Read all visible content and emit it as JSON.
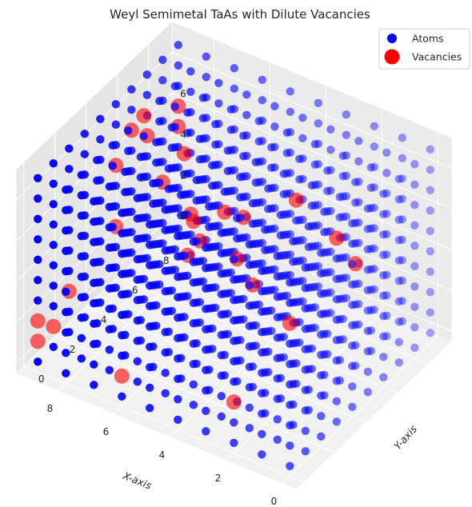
{
  "chart_data": {
    "type": "scatter",
    "projection": "3d",
    "title": "Weyl Semimetal TaAs with Dilute Vacancies",
    "xlabel": "X-axis",
    "ylabel": "Y-axis",
    "zlabel": "",
    "xlim": [
      0,
      9
    ],
    "ylim": [
      0,
      9
    ],
    "zlim": [
      0,
      9
    ],
    "xticks": [
      "0",
      "2",
      "4",
      "6",
      "8"
    ],
    "yticks": [
      "0",
      "2",
      "4",
      "6",
      "8"
    ],
    "zticks": [
      "0",
      "2",
      "4",
      "6"
    ],
    "grid": true,
    "legend_position": "top-right",
    "lattice": {
      "n": 10,
      "spacing": 1
    },
    "series": [
      {
        "name": "Atoms",
        "color": "#0000ff",
        "marker": "circle"
      },
      {
        "name": "Vacancies",
        "color": "#ff0000",
        "marker": "circle",
        "alpha": 0.6,
        "points": [
          [
            9,
            0,
            2
          ],
          [
            9,
            1,
            1
          ],
          [
            9,
            0,
            1
          ],
          [
            9,
            2,
            2
          ],
          [
            9,
            5,
            3
          ],
          [
            9,
            7,
            6
          ],
          [
            9,
            9,
            5
          ],
          [
            9,
            8,
            3
          ],
          [
            9,
            6,
            7
          ],
          [
            6,
            0,
            1
          ],
          [
            2,
            0,
            2
          ],
          [
            0,
            0,
            7
          ],
          [
            4,
            1,
            9
          ],
          [
            2,
            4,
            9
          ],
          [
            0,
            3,
            9
          ],
          [
            6,
            4,
            9
          ],
          [
            9,
            5,
            6
          ],
          [
            8,
            5,
            9
          ],
          [
            3,
            3,
            5
          ],
          [
            1,
            6,
            5
          ],
          [
            5,
            6,
            5
          ],
          [
            7,
            6,
            2
          ],
          [
            4,
            3,
            8
          ],
          [
            6,
            5,
            4
          ],
          [
            8,
            8,
            2
          ],
          [
            9,
            9,
            6
          ],
          [
            3,
            2,
            7
          ]
        ]
      }
    ]
  }
}
